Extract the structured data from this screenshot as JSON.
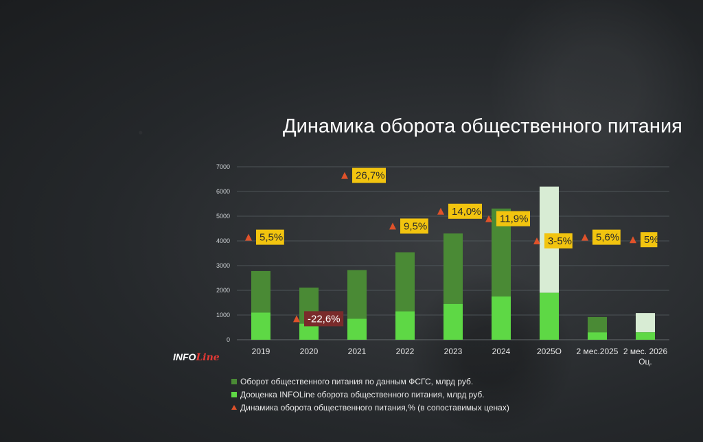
{
  "title": "Динамика оборота общественного питания",
  "logo": {
    "info": "INFO",
    "line": "Line"
  },
  "legend": [
    {
      "label": "Оборот общественного питания по данным ФСГС, млрд руб.",
      "color": "#4a8a35"
    },
    {
      "label": "Дооценка INFOLine оборота общественного питания, млрд руб.",
      "color": "#5ed845"
    },
    {
      "label": "Динамика оборота общественного питания,% (в сопоставимых ценах)",
      "color": "#e0522a"
    }
  ],
  "chart_data": {
    "type": "bar",
    "title": "Динамика оборота общественного питания",
    "ylim": [
      0,
      7000
    ],
    "yticks": [
      0,
      1000,
      2000,
      3000,
      4000,
      5000,
      6000,
      7000
    ],
    "grid": true,
    "legend_position": "bottom-left",
    "categories": [
      "2019",
      "2020",
      "2021",
      "2022",
      "2023",
      "2024",
      "2025О",
      "2 мес.2025",
      "2 мес. 2026 Оц."
    ],
    "category_lines": [
      [
        "2019"
      ],
      [
        "2020"
      ],
      [
        "2021"
      ],
      [
        "2022"
      ],
      [
        "2023"
      ],
      [
        "2024"
      ],
      [
        "2025О"
      ],
      [
        "2 мес.2025"
      ],
      [
        "2 мес. 2026",
        "Оц."
      ]
    ],
    "series": [
      {
        "name": "Оборот общественного питания по данным ФСГС, млрд руб.",
        "values": [
          1100,
          650,
          850,
          1150,
          1450,
          1750,
          1900,
          300,
          300
        ],
        "color": "#5ed845"
      },
      {
        "name": "Дооценка INFOLine оборота общественного питания, млрд руб.",
        "values": [
          1680,
          1460,
          1970,
          2390,
          2850,
          3560,
          4300,
          620,
          780
        ],
        "color": "#4a8a35",
        "forecast_color": "#d8ecd4"
      }
    ],
    "growth": {
      "name": "Динамика оборота общественного питания,% (в сопоставимых ценах)",
      "labels": [
        "5,5%",
        "-22,6%",
        "26,7%",
        "9,5%",
        "14,0%",
        "11,9%",
        "3-5%",
        "5,6%",
        "5%"
      ],
      "marker_values": [
        4150,
        850,
        6650,
        4600,
        5200,
        4900,
        4000,
        4150,
        4050
      ]
    }
  }
}
